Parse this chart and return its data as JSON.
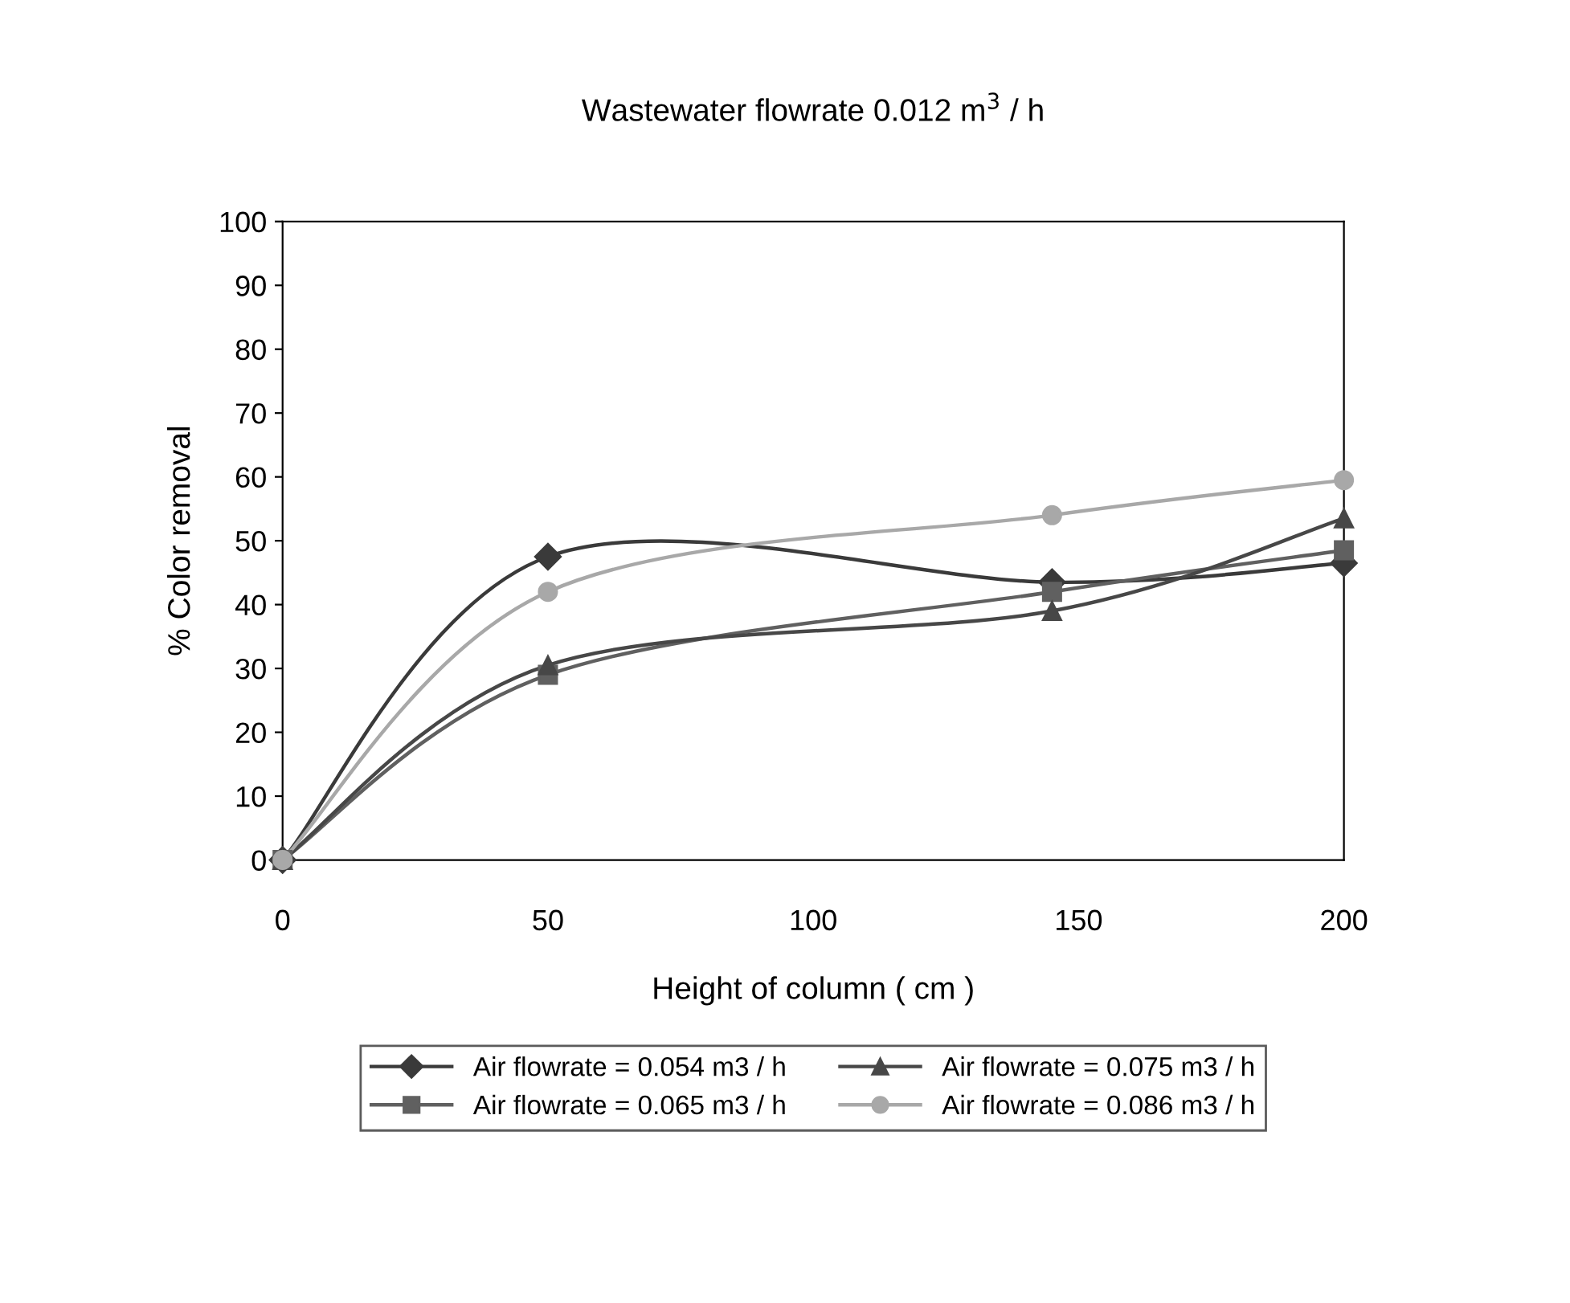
{
  "chart_data": {
    "type": "line",
    "title": "Wastewater flowrate 0.012 m$^{3}$ / h",
    "xlabel": "Height of column ( cm )",
    "ylabel": "% Color removal",
    "x": [
      0,
      50,
      145,
      200
    ],
    "series": [
      {
        "name": "Air flowrate = 0.054 m3 / h",
        "color": "#3a3a3a",
        "marker": "diamond",
        "values": [
          0,
          47.5,
          43.5,
          46.5
        ]
      },
      {
        "name": "Air flowrate = 0.065 m3 / h",
        "color": "#606060",
        "marker": "square",
        "values": [
          0,
          29,
          42,
          48.5
        ]
      },
      {
        "name": "Air flowrate = 0.075 m3 / h",
        "color": "#474747",
        "marker": "triangle",
        "values": [
          0,
          30.5,
          39,
          53.5
        ]
      },
      {
        "name": "Air flowrate = 0.086 m3 / h",
        "color": "#a8a8a8",
        "marker": "circle",
        "values": [
          0,
          42,
          54,
          59.5
        ]
      }
    ],
    "xlim": [
      0,
      200
    ],
    "xticks": [
      0,
      50,
      100,
      150,
      200
    ],
    "ylim": [
      0,
      100
    ],
    "yticks": [
      0,
      10,
      20,
      30,
      40,
      50,
      60,
      70,
      80,
      90,
      100
    ],
    "grid": false,
    "legend": "bottom",
    "line_style": "solid"
  }
}
